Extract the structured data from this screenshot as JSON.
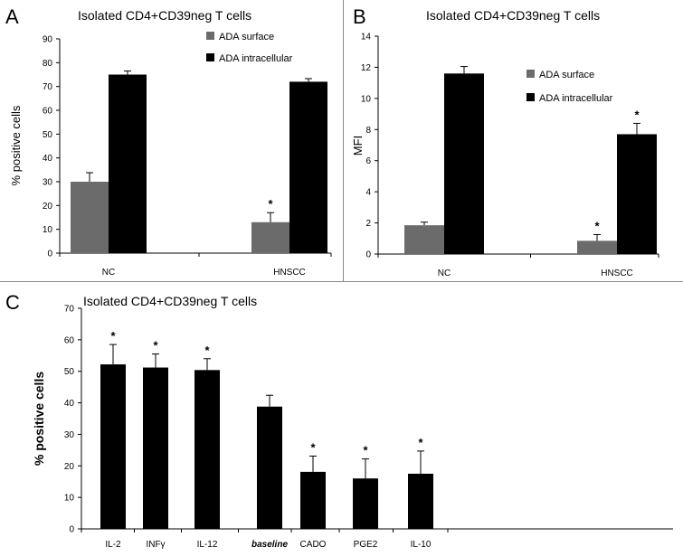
{
  "chart_data": [
    {
      "panel": "A",
      "type": "bar",
      "title": "Isolated CD4+CD39neg T cells",
      "ylabel": "% positive cells",
      "xlabel": "",
      "ylim": [
        0,
        90
      ],
      "yticks": [
        "0",
        "10",
        "20",
        "30",
        "40",
        "50",
        "60",
        "70",
        "80",
        "90"
      ],
      "categories": [
        "NC",
        "HNSCC"
      ],
      "series": [
        {
          "name": "ADA surface",
          "color": "#6b6b6b",
          "values": [
            30,
            13
          ],
          "errors": [
            3.8,
            4.0
          ],
          "significant": [
            false,
            true
          ]
        },
        {
          "name": "ADA intracellular",
          "color": "#000000",
          "values": [
            75,
            72
          ],
          "errors": [
            1.5,
            1.3
          ],
          "significant": [
            false,
            false
          ]
        }
      ],
      "star": "*",
      "legend_position": "top-right"
    },
    {
      "panel": "B",
      "type": "bar",
      "title": "Isolated CD4+CD39neg T cells",
      "ylabel": "MFI",
      "xlabel": "",
      "ylim": [
        0,
        14
      ],
      "yticks": [
        "0",
        "2",
        "4",
        "6",
        "8",
        "10",
        "12",
        "14"
      ],
      "categories": [
        "NC",
        "HNSCC"
      ],
      "series": [
        {
          "name": "ADA surface",
          "color": "#6b6b6b",
          "values": [
            1.85,
            0.85
          ],
          "errors": [
            0.2,
            0.4
          ],
          "significant": [
            false,
            true
          ]
        },
        {
          "name": "ADA intracellular",
          "color": "#000000",
          "values": [
            11.6,
            7.7
          ],
          "errors": [
            0.45,
            0.7
          ],
          "significant": [
            false,
            true
          ]
        }
      ],
      "star": "*",
      "legend_position": "middle-right"
    },
    {
      "panel": "C",
      "type": "bar",
      "title": "Isolated CD4+CD39neg T cells",
      "ylabel": "% positive cells",
      "xlabel": "",
      "ylim": [
        0,
        70
      ],
      "yticks": [
        "0",
        "10",
        "20",
        "30",
        "40",
        "50",
        "60",
        "70"
      ],
      "categories": [
        "IL-2",
        "INFγ",
        "IL-12",
        "baseline",
        "CADO",
        "PGE2",
        "IL-10"
      ],
      "series": [
        {
          "name": "",
          "color": "#000000",
          "values": [
            52.2,
            51.2,
            50.4,
            38.8,
            18.1,
            16.0,
            17.5
          ],
          "errors": [
            6.3,
            4.3,
            3.6,
            3.6,
            5.0,
            6.2,
            7.2
          ],
          "significant": [
            true,
            true,
            true,
            false,
            true,
            true,
            true
          ]
        }
      ],
      "star": "*"
    }
  ]
}
